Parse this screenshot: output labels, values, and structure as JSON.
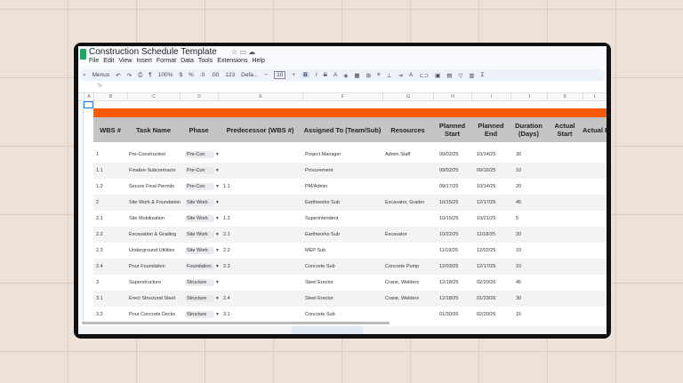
{
  "doc": {
    "title": "Construction Schedule Template",
    "menu": [
      "File",
      "Edit",
      "View",
      "Insert",
      "Format",
      "Data",
      "Tools",
      "Extensions",
      "Help"
    ],
    "toolbar": {
      "search": "Menus",
      "zoom": "100%",
      "currency": "$",
      "percent": "%",
      "decimals_down": ".0",
      "decimals_up": ".00",
      "number_format": "123",
      "font": "Defa...",
      "font_size": "10"
    },
    "formula_label": "fx",
    "columns": [
      "A",
      "B",
      "C",
      "D",
      "E",
      "F",
      "G",
      "H",
      "I",
      "J",
      "K",
      "L"
    ]
  },
  "table": {
    "headers": [
      "WBS #",
      "Task Name",
      "Phase",
      "Predecessor (WBS #)",
      "Assigned To (Team/Sub)",
      "Resources",
      "Planned Start",
      "Planned End",
      "Duration (Days)",
      "Actual Start",
      "Actual End"
    ],
    "rows": [
      [
        "1",
        "Pre-Construction",
        "Pre-Con",
        "",
        "Project Manager",
        "Admin Staff",
        "09/02/25",
        "10/14/25",
        "30"
      ],
      [
        "1.1",
        "Finalize Subcontracts",
        "Pre-Con",
        "",
        "Procurement",
        "",
        "09/02/25",
        "09/16/25",
        "10"
      ],
      [
        "1.2",
        "Secure Final Permits",
        "Pre-Con",
        "1.1",
        "PM/Admin",
        "",
        "09/17/25",
        "10/14/25",
        "20"
      ],
      [
        "2",
        "Site Work & Foundation",
        "Site Work",
        "",
        "Earthworks Sub",
        "Excavator, Grader",
        "10/15/25",
        "12/17/25",
        "45"
      ],
      [
        "2.1",
        "Site Mobilization",
        "Site Work",
        "1.2",
        "Superintendent",
        "",
        "10/15/25",
        "10/21/25",
        "5"
      ],
      [
        "2.2",
        "Excavation & Grading",
        "Site Work",
        "2.1",
        "Earthworks Sub",
        "Excavator",
        "10/22/25",
        "11/18/25",
        "20"
      ],
      [
        "2.3",
        "Underground Utilities",
        "Site Work",
        "2.2",
        "MEP Sub",
        "",
        "11/19/25",
        "12/02/25",
        "10"
      ],
      [
        "2.4",
        "Pour Foundation",
        "Foundation",
        "2.3",
        "Concrete Sub",
        "Concrete Pump",
        "12/03/25",
        "12/17/25",
        "10"
      ],
      [
        "3",
        "Superstructure",
        "Structure",
        "",
        "Steel Erector",
        "Crane, Welders",
        "12/18/25",
        "02/20/26",
        "45"
      ],
      [
        "3.1",
        "Erect Structural Steel",
        "Structure",
        "2.4",
        "Steel Erector",
        "Crane, Welders",
        "12/18/25",
        "01/29/26",
        "30"
      ],
      [
        "3.2",
        "Pour Concrete Decks",
        "Structure",
        "3.1",
        "Concrete Sub",
        "",
        "01/30/26",
        "02/20/26",
        "15"
      ]
    ]
  },
  "colors": {
    "accent": "#ff5a00",
    "header_bg": "#c4c4c4"
  }
}
